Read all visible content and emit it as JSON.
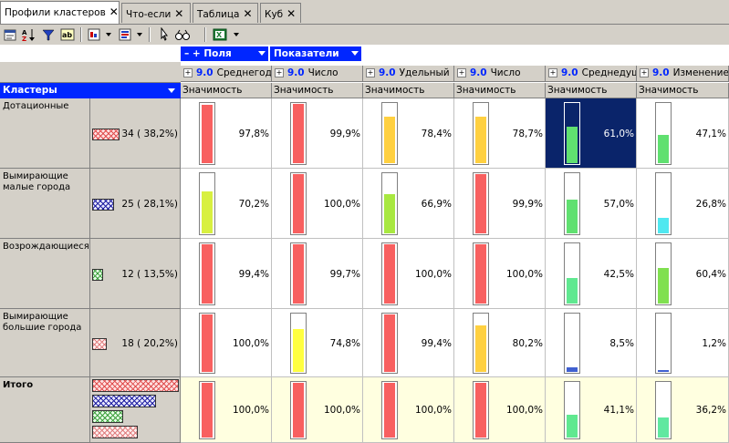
{
  "tabs": [
    {
      "label": "Профили кластеров",
      "active": true
    },
    {
      "label": "Что-если",
      "active": false
    },
    {
      "label": "Таблица",
      "active": false
    },
    {
      "label": "Куб",
      "active": false
    }
  ],
  "toolbar": {
    "icons": [
      "properties-icon",
      "sort-az-icon",
      "filter-icon",
      "ab-icon",
      "chart-icon",
      "dropdown-icon",
      "columns-icon",
      "dropdown-icon",
      "pointer-icon",
      "binoculars-icon",
      "excel-icon",
      "dropdown-icon"
    ]
  },
  "pivot": {
    "fields_label": "– + Поля",
    "indicators_label": "Показатели",
    "rows_header": "Кластеры"
  },
  "columns": [
    {
      "num": "9.0",
      "name": "Среднегод",
      "sub": "Значимость"
    },
    {
      "num": "9.0",
      "name": "Число",
      "sub": "Значимость"
    },
    {
      "num": "9.0",
      "name": "Удельный",
      "sub": "Значимость"
    },
    {
      "num": "9.0",
      "name": "Число",
      "sub": "Значимость"
    },
    {
      "num": "9.0",
      "name": "Среднедуш",
      "sub": "Значимость"
    },
    {
      "num": "9.0",
      "name": "Изменение",
      "sub": "Значимость"
    }
  ],
  "rows": [
    {
      "label": "Дотационные",
      "count": "34 ( 38,2%)",
      "swatch": "red",
      "values": [
        "97,8%",
        "99,9%",
        "78,4%",
        "78,7%",
        "61,0%",
        "47,1%"
      ],
      "fills": [
        0.978,
        0.999,
        0.784,
        0.787,
        0.61,
        0.471
      ],
      "colors": [
        "#f86060",
        "#f86060",
        "#ffd040",
        "#ffd040",
        "#60e070",
        "#60e070"
      ]
    },
    {
      "label": "Вымирающие малые города",
      "count": "25 ( 28,1%)",
      "swatch": "blue",
      "values": [
        "70,2%",
        "100,0%",
        "66,9%",
        "99,9%",
        "57,0%",
        "26,8%"
      ],
      "fills": [
        0.702,
        1.0,
        0.669,
        0.999,
        0.57,
        0.268
      ],
      "colors": [
        "#d8f040",
        "#f86060",
        "#a8e840",
        "#f86060",
        "#60e070",
        "#50e8f0"
      ]
    },
    {
      "label": "Возрождающиеся",
      "count": "12 ( 13,5%)",
      "swatch": "green",
      "values": [
        "99,4%",
        "99,7%",
        "100,0%",
        "100,0%",
        "42,5%",
        "60,4%"
      ],
      "fills": [
        0.994,
        0.997,
        1.0,
        1.0,
        0.425,
        0.604
      ],
      "colors": [
        "#f86060",
        "#f86060",
        "#f86060",
        "#f86060",
        "#60e890",
        "#80e050"
      ]
    },
    {
      "label": "Вымирающие большие города",
      "count": "18 ( 20,2%)",
      "swatch": "pink",
      "values": [
        "100,0%",
        "74,8%",
        "99,4%",
        "80,2%",
        "8,5%",
        "1,2%"
      ],
      "fills": [
        1.0,
        0.748,
        0.994,
        0.802,
        0.085,
        0.012
      ],
      "colors": [
        "#f86060",
        "#ffff40",
        "#f86060",
        "#ffd040",
        "#4060d0",
        "#4060d0"
      ]
    },
    {
      "label": "Итого",
      "count": "",
      "swatch": "all",
      "values": [
        "100,0%",
        "100,0%",
        "100,0%",
        "100,0%",
        "41,1%",
        "36,2%"
      ],
      "fills": [
        1.0,
        1.0,
        1.0,
        1.0,
        0.411,
        0.362
      ],
      "colors": [
        "#f86060",
        "#f86060",
        "#f86060",
        "#f86060",
        "#60e890",
        "#60e8a0"
      ]
    }
  ]
}
